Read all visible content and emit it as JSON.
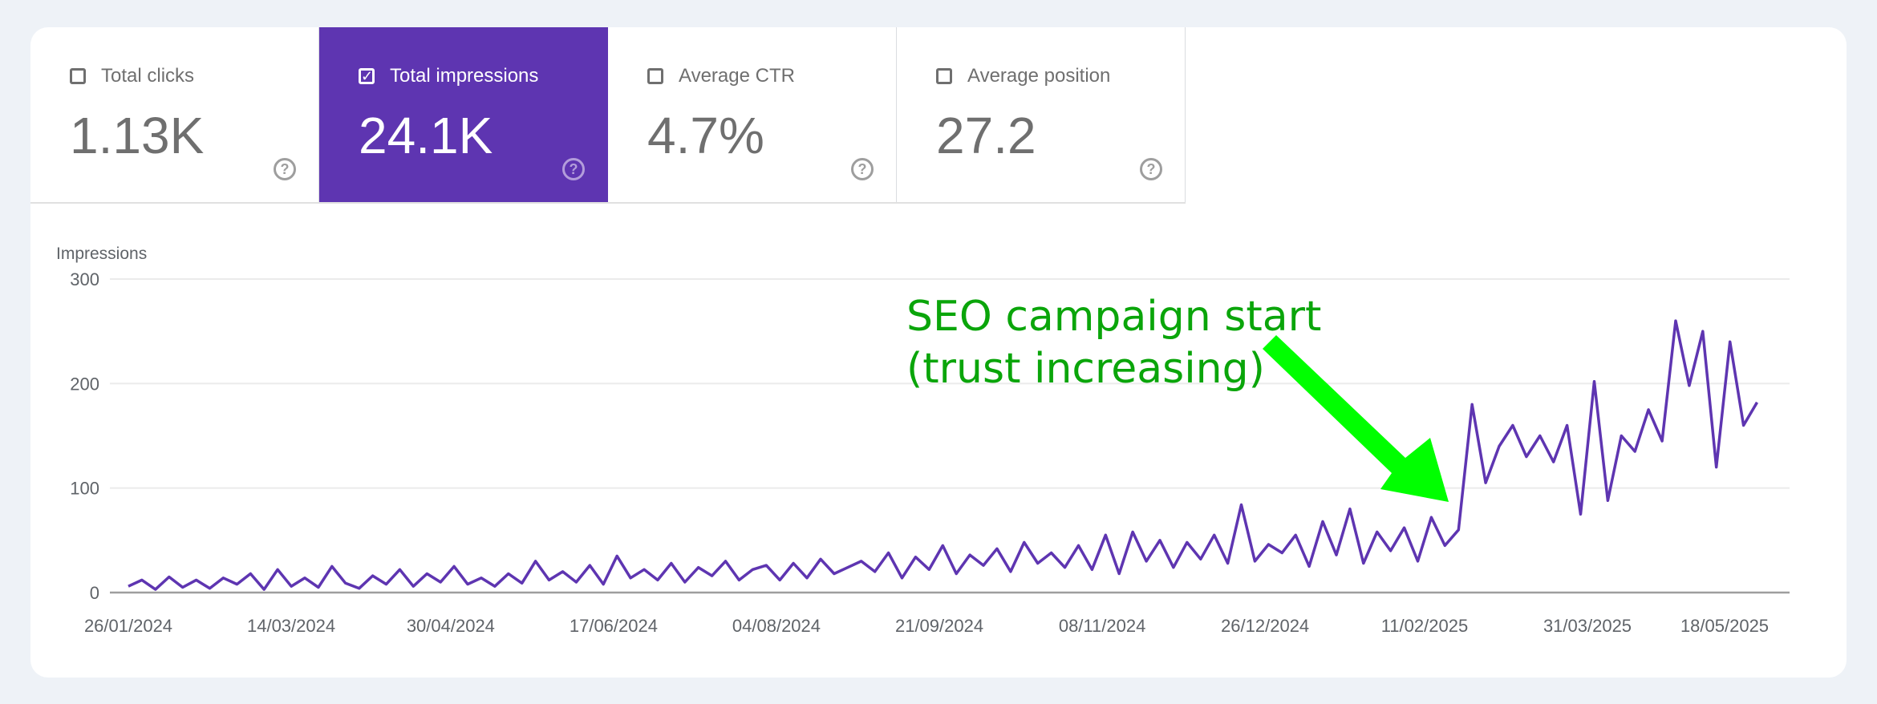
{
  "metrics": [
    {
      "label": "Total clicks",
      "value": "1.13K",
      "checked": false
    },
    {
      "label": "Total impressions",
      "value": "24.1K",
      "checked": true
    },
    {
      "label": "Average CTR",
      "value": "4.7%",
      "checked": false
    },
    {
      "label": "Average position",
      "value": "27.2",
      "checked": false
    }
  ],
  "help_glyph": "?",
  "check_glyph": "✓",
  "colors": {
    "accent": "#5e35b1",
    "line": "#5e35b1",
    "annotation_text": "#0aa50a",
    "arrow": "#00ff00"
  },
  "chart_data": {
    "type": "line",
    "ylabel": "Impressions",
    "ylim": [
      0,
      300
    ],
    "yticks": [
      "0",
      "100",
      "200",
      "300"
    ],
    "ytick_values": [
      0,
      100,
      200,
      300
    ],
    "xtick_labels": [
      "26/01/2024",
      "14/03/2024",
      "30/04/2024",
      "17/06/2024",
      "04/08/2024",
      "21/09/2024",
      "08/11/2024",
      "26/12/2024",
      "11/02/2025",
      "31/03/2025",
      "18/05/2025"
    ],
    "grid": true,
    "annotation": {
      "line1": "SEO campaign start",
      "line2": "(trust increasing)"
    },
    "series": [
      {
        "x": [
          "26/01/2024",
          "30/01/2024",
          "03/02/2024",
          "07/02/2024",
          "11/02/2024",
          "15/02/2024",
          "19/02/2024",
          "23/02/2024",
          "27/02/2024",
          "02/03/2024",
          "06/03/2024",
          "10/03/2024",
          "14/03/2024",
          "18/03/2024",
          "22/03/2024",
          "26/03/2024",
          "30/03/2024",
          "03/04/2024",
          "07/04/2024",
          "11/04/2024",
          "15/04/2024",
          "19/04/2024",
          "23/04/2024",
          "27/04/2024",
          "01/05/2024",
          "05/05/2024",
          "09/05/2024",
          "13/05/2024",
          "17/05/2024",
          "21/05/2024",
          "25/05/2024",
          "29/05/2024",
          "02/06/2024",
          "06/06/2024",
          "10/06/2024",
          "14/06/2024",
          "18/06/2024",
          "22/06/2024",
          "26/06/2024",
          "30/06/2024",
          "04/07/2024",
          "08/07/2024",
          "12/07/2024",
          "16/07/2024",
          "20/07/2024",
          "24/07/2024",
          "28/07/2024",
          "01/08/2024",
          "05/08/2024",
          "09/08/2024",
          "13/08/2024",
          "17/08/2024",
          "21/08/2024",
          "25/08/2024",
          "29/08/2024",
          "02/09/2024",
          "06/09/2024",
          "10/09/2024",
          "14/09/2024",
          "18/09/2024",
          "22/09/2024",
          "26/09/2024",
          "30/09/2024",
          "04/10/2024",
          "08/10/2024",
          "12/10/2024",
          "16/10/2024",
          "20/10/2024",
          "24/10/2024",
          "28/10/2024",
          "01/11/2024",
          "05/11/2024",
          "09/11/2024",
          "13/11/2024",
          "17/11/2024",
          "21/11/2024",
          "25/11/2024",
          "29/11/2024",
          "03/12/2024",
          "07/12/2024",
          "11/12/2024",
          "15/12/2024",
          "19/12/2024",
          "23/12/2024",
          "27/12/2024",
          "31/12/2024",
          "04/01/2025",
          "08/01/2025",
          "12/01/2025",
          "16/01/2025",
          "20/01/2025",
          "24/01/2025",
          "28/01/2025",
          "01/02/2025",
          "05/02/2025",
          "09/02/2025",
          "13/02/2025",
          "17/02/2025",
          "21/02/2025",
          "25/02/2025",
          "01/03/2025",
          "05/03/2025",
          "09/03/2025",
          "13/03/2025",
          "17/03/2025",
          "21/03/2025",
          "25/03/2025",
          "29/03/2025",
          "02/04/2025",
          "06/04/2025",
          "10/04/2025",
          "14/04/2025",
          "18/04/2025",
          "22/04/2025",
          "26/04/2025",
          "30/04/2025",
          "04/05/2025",
          "08/05/2025",
          "12/05/2025",
          "16/05/2025",
          "20/05/2025"
        ],
        "values": [
          6,
          12,
          3,
          15,
          5,
          12,
          4,
          14,
          8,
          18,
          3,
          22,
          6,
          14,
          5,
          25,
          9,
          4,
          16,
          8,
          22,
          6,
          18,
          10,
          25,
          8,
          14,
          6,
          18,
          9,
          30,
          12,
          20,
          10,
          26,
          8,
          35,
          14,
          22,
          12,
          28,
          10,
          24,
          16,
          30,
          12,
          22,
          26,
          12,
          28,
          14,
          32,
          18,
          24,
          30,
          20,
          38,
          14,
          34,
          22,
          45,
          18,
          36,
          26,
          42,
          20,
          48,
          28,
          38,
          24,
          45,
          22,
          55,
          18,
          58,
          30,
          50,
          24,
          48,
          32,
          55,
          28,
          84,
          30,
          46,
          38,
          55,
          25,
          68,
          36,
          80,
          28,
          58,
          40,
          62,
          30,
          72,
          45,
          60,
          180,
          105,
          140,
          160,
          130,
          150,
          125,
          160,
          75,
          202,
          88,
          150,
          135,
          175,
          145,
          260,
          198,
          250,
          120,
          240,
          160,
          182
        ]
      }
    ]
  }
}
